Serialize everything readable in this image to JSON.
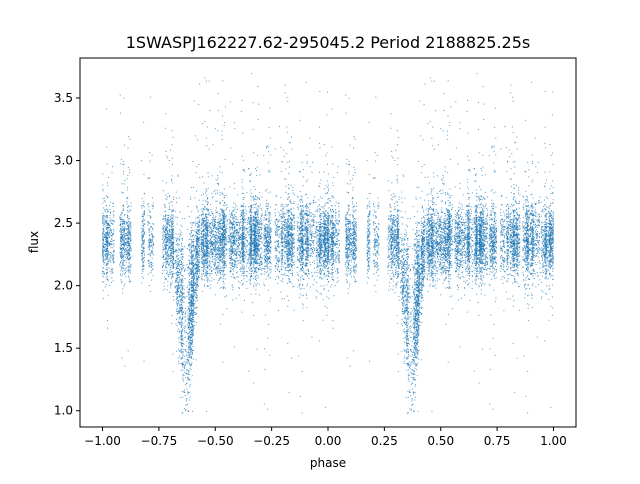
{
  "chart_data": {
    "type": "scatter",
    "title": "1SWASPJ162227.62-295045.2 Period 2188825.25s",
    "xlabel": "phase",
    "ylabel": "flux",
    "xlim": [
      -1.1,
      1.1
    ],
    "ylim": [
      0.87,
      3.82
    ],
    "x_ticks": [
      -1.0,
      -0.75,
      -0.5,
      -0.25,
      0.0,
      0.25,
      0.5,
      0.75,
      1.0
    ],
    "x_tick_labels": [
      "−1.00",
      "−0.75",
      "−0.50",
      "−0.25",
      "0.00",
      "0.25",
      "0.50",
      "0.75",
      "1.00"
    ],
    "y_ticks": [
      1.0,
      1.5,
      2.0,
      2.5,
      3.0,
      3.5
    ],
    "y_tick_labels": [
      "1.0",
      "1.5",
      "2.0",
      "2.5",
      "3.0",
      "3.5"
    ],
    "grid": false,
    "marker_color": "#1f77b4",
    "baseline_flux": 2.35,
    "scatter_sigma": 0.15,
    "dip_phases": [
      -0.63,
      0.37
    ],
    "dip_min_flux": 1.0,
    "phase_period": 1.0,
    "point_count": 9000,
    "series": [
      {
        "points_summary": "phase-folded light curve repeated over two cycles; flux clusters near 2.35 with a deep dip toward ~1.0 near phase -0.63 and 0.37 and sporadic outliers up to ~3.7",
        "sample_points": [
          [
            -1.0,
            2.38
          ],
          [
            -0.95,
            2.41
          ],
          [
            -0.9,
            2.3
          ],
          [
            -0.85,
            2.36
          ],
          [
            -0.8,
            2.4
          ],
          [
            -0.75,
            2.33
          ],
          [
            -0.7,
            2.25
          ],
          [
            -0.66,
            1.8
          ],
          [
            -0.64,
            1.2
          ],
          [
            -0.63,
            1.0
          ],
          [
            -0.6,
            2.1
          ],
          [
            -0.55,
            2.3
          ],
          [
            -0.5,
            2.34
          ],
          [
            -0.45,
            2.4
          ],
          [
            -0.4,
            2.36
          ],
          [
            -0.3,
            2.42
          ],
          [
            -0.2,
            2.35
          ],
          [
            -0.1,
            2.38
          ],
          [
            0.0,
            2.4
          ],
          [
            0.1,
            2.33
          ],
          [
            0.2,
            2.37
          ],
          [
            0.3,
            2.28
          ],
          [
            0.34,
            1.8
          ],
          [
            0.36,
            1.2
          ],
          [
            0.37,
            1.0
          ],
          [
            0.4,
            2.1
          ],
          [
            0.45,
            2.3
          ],
          [
            0.5,
            2.34
          ],
          [
            0.55,
            2.4
          ],
          [
            0.6,
            2.36
          ],
          [
            0.7,
            2.42
          ],
          [
            0.8,
            2.35
          ],
          [
            0.9,
            2.38
          ],
          [
            1.0,
            2.4
          ]
        ]
      }
    ]
  }
}
